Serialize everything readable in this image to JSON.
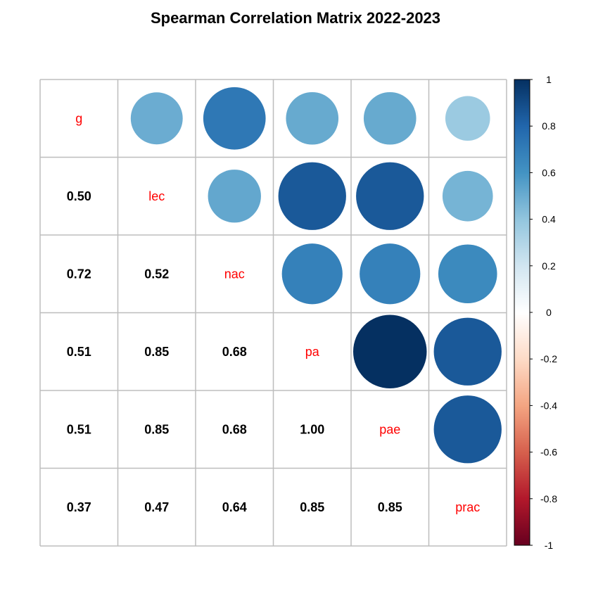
{
  "chart_data": {
    "type": "heatmap",
    "title": "Spearman Correlation Matrix 2022-2023",
    "variables": [
      "g",
      "lec",
      "nac",
      "pa",
      "pae",
      "prac"
    ],
    "matrix": [
      [
        1.0,
        0.5,
        0.72,
        0.51,
        0.51,
        0.37
      ],
      [
        0.5,
        1.0,
        0.52,
        0.85,
        0.85,
        0.47
      ],
      [
        0.72,
        0.52,
        1.0,
        0.68,
        0.68,
        0.64
      ],
      [
        0.51,
        0.85,
        0.68,
        1.0,
        1.0,
        0.85
      ],
      [
        0.51,
        0.85,
        0.68,
        1.0,
        1.0,
        0.85
      ],
      [
        0.37,
        0.47,
        0.64,
        0.85,
        0.85,
        1.0
      ]
    ],
    "upper_method": "circle",
    "lower_method": "number",
    "diagonal_label_color": "#ff0000",
    "colorbar": {
      "range": [
        -1,
        1
      ],
      "ticks": [
        "1",
        "0.8",
        "0.6",
        "0.4",
        "0.2",
        "0",
        "-0.2",
        "-0.4",
        "-0.6",
        "-0.8",
        "-1"
      ],
      "colors": [
        "#67001f",
        "#b2182b",
        "#d6604d",
        "#f4a582",
        "#fddbc7",
        "#ffffff",
        "#d1e5f0",
        "#92c5de",
        "#4393c3",
        "#2166ac",
        "#053061"
      ]
    },
    "grid": true
  }
}
